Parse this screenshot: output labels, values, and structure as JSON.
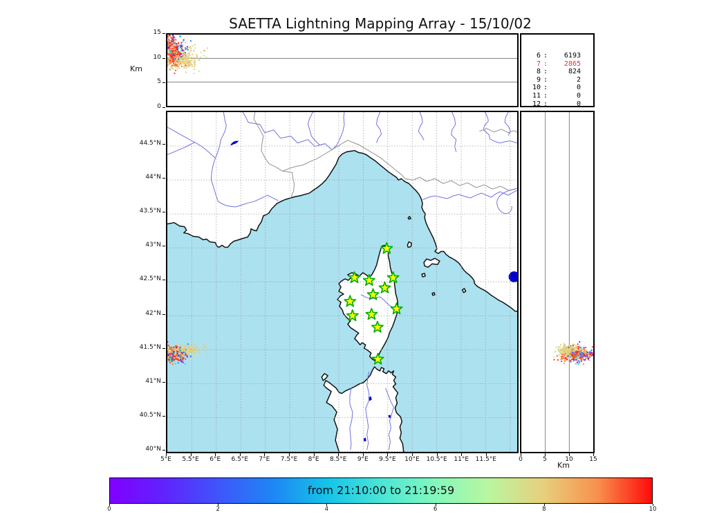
{
  "title": "SAETTA Lightning Mapping Array - 15/10/02",
  "axes": {
    "km_label_top": "Km",
    "km_label_right": "Km",
    "top_yticks": [
      "0",
      "5",
      "10",
      "15"
    ],
    "right_xticks": [
      "0",
      "5",
      "10",
      "15"
    ],
    "lon_ticks": [
      "5°E",
      "5.5°E",
      "6°E",
      "6.5°E",
      "7°E",
      "7.5°E",
      "8°E",
      "8.5°E",
      "9°E",
      "9.5°E",
      "10°E",
      "10.5°E",
      "11°E",
      "11.5°E"
    ],
    "lat_ticks": [
      "44.5°N",
      "44°N",
      "43.5°N",
      "43°N",
      "42.5°N",
      "42°N",
      "41.5°N",
      "41°N",
      "40.5°N",
      "40°N"
    ]
  },
  "stats": {
    "rows": [
      {
        "label": "6",
        "value": "6193",
        "highlight": false
      },
      {
        "label": "7",
        "value": "2865",
        "highlight": true
      },
      {
        "label": "8",
        "value": "824",
        "highlight": false
      },
      {
        "label": "9",
        "value": "2",
        "highlight": false
      },
      {
        "label": "10",
        "value": "0",
        "highlight": false
      },
      {
        "label": "11",
        "value": "0",
        "highlight": false
      },
      {
        "label": "12",
        "value": "0",
        "highlight": false
      }
    ]
  },
  "colorbar": {
    "label": "from 21:10:00 to 21:19:59",
    "ticks": [
      "0",
      "2",
      "4",
      "6",
      "8",
      "10"
    ],
    "gradient": [
      {
        "t": 0.0,
        "c": "#8000ff"
      },
      {
        "t": 0.1,
        "c": "#6023fd"
      },
      {
        "t": 0.2,
        "c": "#3f55fb"
      },
      {
        "t": 0.3,
        "c": "#1e86f4"
      },
      {
        "t": 0.4,
        "c": "#15c3e9"
      },
      {
        "t": 0.5,
        "c": "#4ae5d7"
      },
      {
        "t": 0.6,
        "c": "#83f8bd"
      },
      {
        "t": 0.7,
        "c": "#baf69f"
      },
      {
        "t": 0.8,
        "c": "#e7cf7d"
      },
      {
        "t": 0.9,
        "c": "#f8904d"
      },
      {
        "t": 1.0,
        "c": "#ff0a0a"
      }
    ]
  },
  "map_colors": {
    "sea": "#ace1f0",
    "land": "#ffffff",
    "coast": "#111111",
    "river": "#7070e0",
    "border": "#909090",
    "grid": "#999999",
    "lake": "#0000c8",
    "star_fill": "#ffff00",
    "star_edge": "#00b000"
  },
  "chart_data": {
    "type": "scatter",
    "title": "SAETTA Lightning Mapping Array - 15/10/02",
    "projections": [
      "longitude-altitude (top)",
      "longitude-latitude (map)",
      "altitude-latitude (right)"
    ],
    "map_extent": {
      "lon": [
        5.0,
        12.14
      ],
      "lat": [
        40.0,
        45.0
      ]
    },
    "altitude_km_range": [
      0,
      15
    ],
    "altitude_gridlines_km": [
      5,
      10
    ],
    "colormap": "rainbow",
    "color_scale": {
      "min": 0,
      "max": 10,
      "label": "from 21:10:00 to 21:19:59"
    },
    "station_source_counts": [
      [
        "6",
        6193
      ],
      [
        "7",
        2865
      ],
      [
        "8",
        824
      ],
      [
        "9",
        2
      ],
      [
        "10",
        0
      ],
      [
        "11",
        0
      ],
      [
        "12",
        0
      ]
    ],
    "stations_lon_lat": [
      [
        9.48,
        42.99
      ],
      [
        8.82,
        42.56
      ],
      [
        9.61,
        42.56
      ],
      [
        9.12,
        42.52
      ],
      [
        9.44,
        42.41
      ],
      [
        9.2,
        42.31
      ],
      [
        8.73,
        42.21
      ],
      [
        9.68,
        42.1
      ],
      [
        8.78,
        42.0
      ],
      [
        9.17,
        42.02
      ],
      [
        9.29,
        41.83
      ],
      [
        9.3,
        41.36
      ]
    ],
    "storm_clusters": [
      {
        "name": "core-red",
        "count": 260,
        "lon_mean": 5.13,
        "lon_sd": 0.09,
        "lat_mean": 41.43,
        "lat_sd": 0.05,
        "alt_mean": 10.6,
        "alt_sd": 1.2,
        "t_mean": 9.5,
        "t_sd": 0.35
      },
      {
        "name": "high-red",
        "count": 100,
        "lon_mean": 5.05,
        "lon_sd": 0.06,
        "lat_mean": 41.44,
        "lat_sd": 0.04,
        "alt_mean": 13.0,
        "alt_sd": 1.0,
        "t_mean": 9.3,
        "t_sd": 0.5
      },
      {
        "name": "tan-band",
        "count": 150,
        "lon_mean": 5.32,
        "lon_sd": 0.17,
        "lat_mean": 41.49,
        "lat_sd": 0.045,
        "alt_mean": 9.4,
        "alt_sd": 0.8,
        "t_mean": 7.95,
        "t_sd": 0.25
      },
      {
        "name": "tan-high",
        "count": 40,
        "lon_mean": 5.42,
        "lon_sd": 0.16,
        "lat_mean": 41.5,
        "lat_sd": 0.04,
        "alt_mean": 11.6,
        "alt_sd": 1.1,
        "t_mean": 7.9,
        "t_sd": 0.3
      },
      {
        "name": "sparse-multi",
        "count": 60,
        "lon_mean": 5.2,
        "lon_sd": 0.15,
        "lat_mean": 41.43,
        "lat_sd": 0.07,
        "alt_mean": 12.3,
        "alt_sd": 1.4,
        "t_uniform": [
          0.3,
          7.0
        ]
      }
    ]
  }
}
